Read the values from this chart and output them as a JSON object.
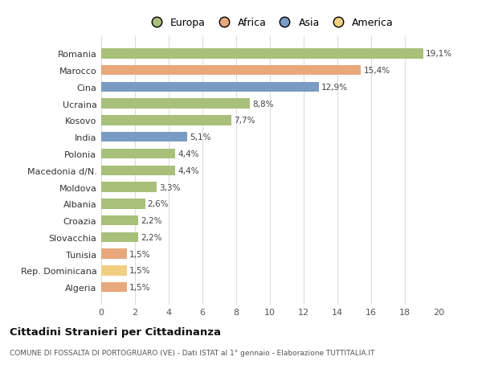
{
  "categories": [
    "Romania",
    "Marocco",
    "Cina",
    "Ucraina",
    "Kosovo",
    "India",
    "Polonia",
    "Macedonia d/N.",
    "Moldova",
    "Albania",
    "Croazia",
    "Slovacchia",
    "Tunisia",
    "Rep. Dominicana",
    "Algeria"
  ],
  "values": [
    19.1,
    15.4,
    12.9,
    8.8,
    7.7,
    5.1,
    4.4,
    4.4,
    3.3,
    2.6,
    2.2,
    2.2,
    1.5,
    1.5,
    1.5
  ],
  "labels": [
    "19,1%",
    "15,4%",
    "12,9%",
    "8,8%",
    "7,7%",
    "5,1%",
    "4,4%",
    "4,4%",
    "3,3%",
    "2,6%",
    "2,2%",
    "2,2%",
    "1,5%",
    "1,5%",
    "1,5%"
  ],
  "continents": [
    "Europa",
    "Africa",
    "Asia",
    "Europa",
    "Europa",
    "Asia",
    "Europa",
    "Europa",
    "Europa",
    "Europa",
    "Europa",
    "Europa",
    "Africa",
    "America",
    "Africa"
  ],
  "colors": {
    "Europa": "#a8c07a",
    "Africa": "#e8a87c",
    "Asia": "#7a9bc4",
    "America": "#f0d080"
  },
  "title": "Cittadini Stranieri per Cittadinanza",
  "subtitle": "COMUNE DI FOSSALTA DI PORTOGRUARO (VE) - Dati ISTAT al 1° gennaio - Elaborazione TUTTITALIA.IT",
  "xlim": [
    0,
    20
  ],
  "xticks": [
    0,
    2,
    4,
    6,
    8,
    10,
    12,
    14,
    16,
    18,
    20
  ],
  "background_color": "#ffffff",
  "grid_color": "#dddddd",
  "legend_order": [
    "Europa",
    "Africa",
    "Asia",
    "America"
  ]
}
